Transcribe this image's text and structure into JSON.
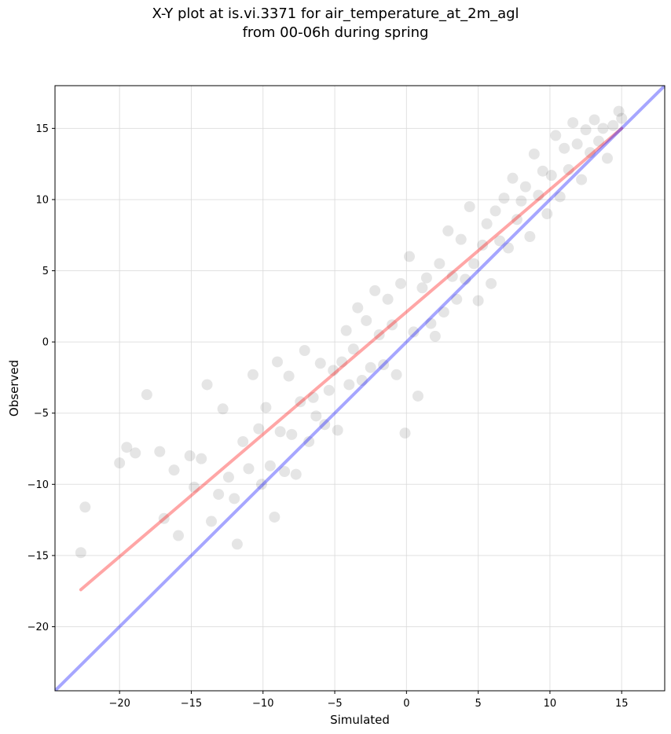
{
  "title_line1": "X-Y plot at is.vi.3371 for air_temperature_at_2m_agl",
  "title_line2": "from 00-06h during spring",
  "chart_data": {
    "type": "scatter",
    "title": "X-Y plot at is.vi.3371 for air_temperature_at_2m_agl\nfrom 00-06h during spring",
    "xlabel": "Simulated",
    "ylabel": "Observed",
    "xlim": [
      -24.5,
      18
    ],
    "ylim": [
      -24.5,
      18
    ],
    "xticks": [
      -20,
      -15,
      -10,
      -5,
      0,
      5,
      10,
      15
    ],
    "yticks": [
      -20,
      -15,
      -10,
      -5,
      0,
      5,
      10,
      15
    ],
    "xtick_labels": [
      "−20",
      "−15",
      "−10",
      "−5",
      "0",
      "5",
      "10",
      "15"
    ],
    "ytick_labels": [
      "−20",
      "−15",
      "−10",
      "−5",
      "0",
      "5",
      "10",
      "15"
    ],
    "grid": true,
    "point_color": "#000000",
    "point_alpha": 0.1,
    "series": [
      {
        "type": "scatter",
        "x": [
          -22.7,
          -22.4,
          -20.0,
          -19.5,
          -18.9,
          -18.1,
          -17.2,
          -16.9,
          -16.2,
          -15.9,
          -15.1,
          -14.8,
          -14.3,
          -13.9,
          -13.6,
          -13.1,
          -12.8,
          -12.4,
          -12.0,
          -11.8,
          -11.4,
          -11.0,
          -10.7,
          -10.3,
          -10.1,
          -9.8,
          -9.5,
          -9.2,
          -9.0,
          -8.8,
          -8.5,
          -8.2,
          -8.0,
          -7.7,
          -7.4,
          -7.1,
          -6.8,
          -6.5,
          -6.3,
          -6.0,
          -5.7,
          -5.4,
          -5.1,
          -4.8,
          -4.5,
          -4.2,
          -4.0,
          -3.7,
          -3.4,
          -3.1,
          -2.8,
          -2.5,
          -2.2,
          -1.9,
          -1.6,
          -1.3,
          -1.0,
          -0.7,
          -0.4,
          -0.1,
          0.2,
          0.5,
          0.8,
          1.1,
          1.4,
          1.7,
          2.0,
          2.3,
          2.6,
          2.9,
          3.2,
          3.5,
          3.8,
          4.1,
          4.4,
          4.7,
          5.0,
          5.3,
          5.6,
          5.9,
          6.2,
          6.5,
          6.8,
          7.1,
          7.4,
          7.7,
          8.0,
          8.3,
          8.6,
          8.9,
          9.2,
          9.5,
          9.8,
          10.1,
          10.4,
          10.7,
          11.0,
          11.3,
          11.6,
          11.9,
          12.2,
          12.5,
          12.8,
          13.1,
          13.4,
          13.7,
          14.0,
          14.4,
          14.8,
          15.0
        ],
        "y": [
          -14.8,
          -11.6,
          -8.5,
          -7.4,
          -7.8,
          -3.7,
          -7.7,
          -12.4,
          -9.0,
          -13.6,
          -8.0,
          -10.2,
          -8.2,
          -3.0,
          -12.6,
          -10.7,
          -4.7,
          -9.5,
          -11.0,
          -14.2,
          -7.0,
          -8.9,
          -2.3,
          -6.1,
          -10.0,
          -4.6,
          -8.7,
          -12.3,
          -1.4,
          -6.3,
          -9.1,
          -2.4,
          -6.5,
          -9.3,
          -4.2,
          -0.6,
          -7.0,
          -3.9,
          -5.2,
          -1.5,
          -5.8,
          -3.4,
          -2.0,
          -6.2,
          -1.4,
          0.8,
          -3.0,
          -0.5,
          2.4,
          -2.7,
          1.5,
          -1.8,
          3.6,
          0.5,
          -1.6,
          3.0,
          1.2,
          -2.3,
          4.1,
          -6.4,
          6.0,
          0.7,
          -3.8,
          3.8,
          4.5,
          1.3,
          0.4,
          5.5,
          2.1,
          7.8,
          4.6,
          3.0,
          7.2,
          4.4,
          9.5,
          5.5,
          2.9,
          6.8,
          8.3,
          4.1,
          9.2,
          7.1,
          10.1,
          6.6,
          11.5,
          8.6,
          9.9,
          10.9,
          7.4,
          13.2,
          10.3,
          12.0,
          9.0,
          11.7,
          14.5,
          10.2,
          13.6,
          12.1,
          15.4,
          13.9,
          11.4,
          14.9,
          13.3,
          15.6,
          14.1,
          15.0,
          12.9,
          15.2,
          16.2,
          15.7
        ]
      },
      {
        "type": "line",
        "name": "",
        "color": "#ff0000",
        "alpha": 0.35,
        "x": [
          -22.7,
          15.0
        ],
        "y": [
          -17.4,
          15.0
        ]
      },
      {
        "type": "line",
        "name": "",
        "color": "#0000ff",
        "alpha": 0.35,
        "x": [
          -24.5,
          18.0
        ],
        "y": [
          -24.5,
          18.0
        ]
      }
    ]
  }
}
